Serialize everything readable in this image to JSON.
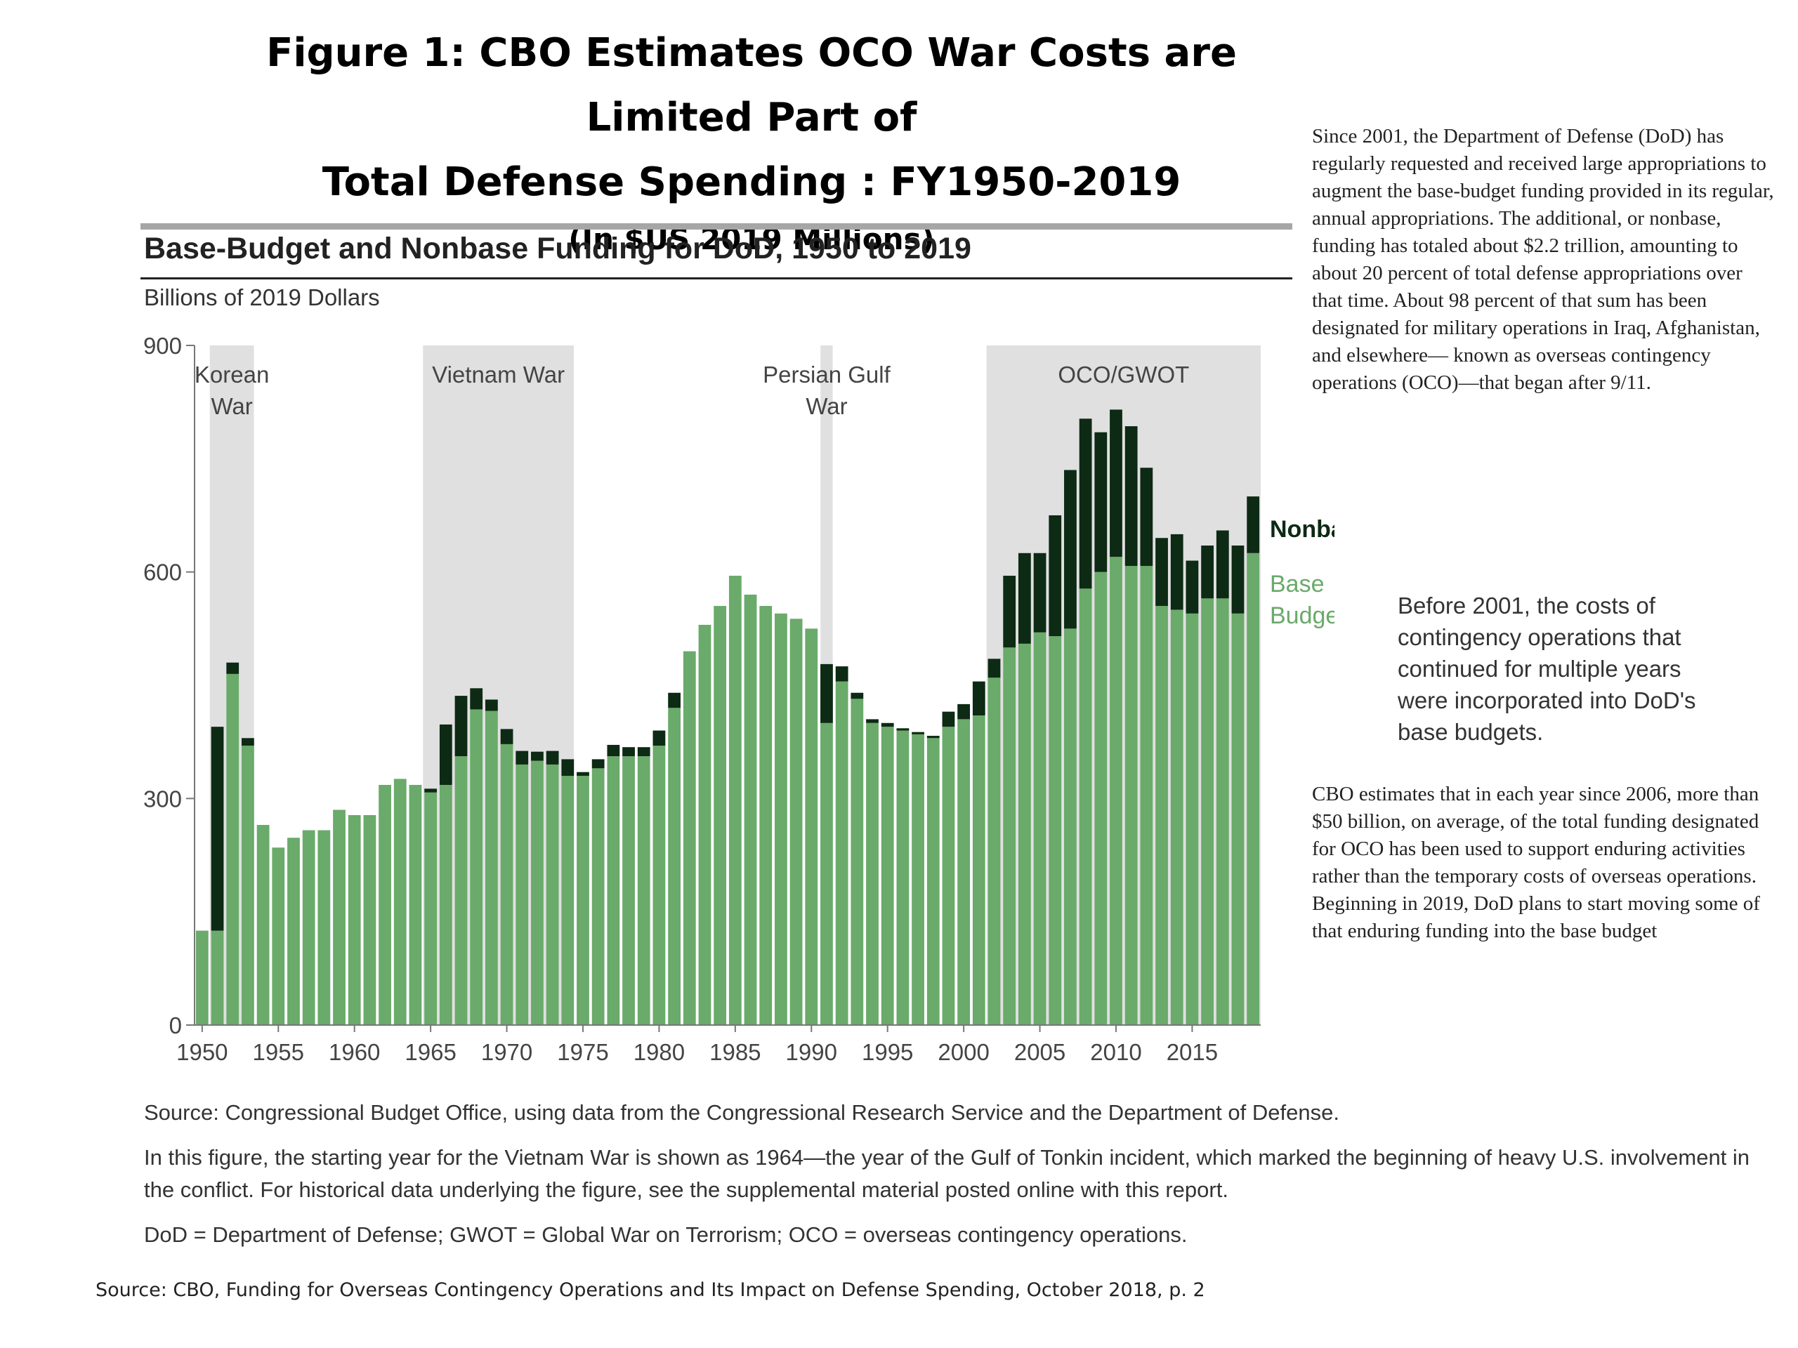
{
  "figure": {
    "title_line1": "Figure 1: CBO Estimates OCO War Costs are Limited Part of",
    "title_line2": "Total Defense Spending : FY1950-2019",
    "title_line3": "(In $US 2019 Millions)"
  },
  "chart_header": {
    "title": "Base-Budget and Nonbase Funding for DoD, 1950 to 2019",
    "units": "Billions of 2019 Dollars"
  },
  "notes": {
    "source": "Source: Congressional Budget Office, using data from the Congressional Research Service and the Department of Defense.",
    "note": "In this figure, the starting year for the Vietnam War is shown as 1964—the year of the Gulf of Tonkin incident, which marked the beginning of heavy U.S. involvement in the conflict. For historical data underlying the figure, see the supplemental material posted online with this report.",
    "abbrev": "DoD = Department of Defense; GWOT = Global War on Terrorism; OCO = overseas contingency operations."
  },
  "bottom_source": "Source: CBO, Funding for Overseas Contingency Operations and Its Impact on Defense Spending, October 2018, p. 2",
  "side_text": {
    "p1": "Since 2001, the Department of Defense (DoD) has regularly requested and received large appropriations to augment the base-budget funding provided in its regular, annual appropriations. The additional, or nonbase, funding has totaled about $2.2 trillion, amounting to about 20 percent of total defense appropriations over that time. About 98 percent of that sum has been designated for military operations in Iraq, Afghanistan, and elsewhere— known as overseas contingency operations (OCO)—that began after 9/11.",
    "p2": "Before 2001, the costs of contingency operations that continued for multiple years were incorporated into DoD's base budgets.",
    "p3": "CBO estimates that in each year since 2006, more than $50 billion, on average, of the total funding designated for OCO has been used to support enduring activities rather than the temporary costs of overseas operations. Beginning in 2019, DoD plans to start moving some of that enduring funding into the base budget"
  },
  "colors": {
    "base": "#6aaa6a",
    "nonbase": "#0d2a14",
    "shade": "#e0e0e0",
    "axis": "#777777",
    "text": "#444444"
  },
  "chart_data": {
    "type": "bar",
    "stacked": true,
    "title": "Base-Budget and Nonbase Funding for DoD, 1950 to 2019",
    "ylabel": "Billions of 2019 Dollars",
    "xlabel": "",
    "ylim": [
      0,
      900
    ],
    "yticks": [
      0,
      300,
      600,
      900
    ],
    "xticks": [
      1950,
      1955,
      1960,
      1965,
      1970,
      1975,
      1980,
      1985,
      1990,
      1995,
      2000,
      2005,
      2010,
      2015
    ],
    "grid": false,
    "x": [
      1950,
      1951,
      1952,
      1953,
      1954,
      1955,
      1956,
      1957,
      1958,
      1959,
      1960,
      1961,
      1962,
      1963,
      1964,
      1965,
      1966,
      1967,
      1968,
      1969,
      1970,
      1971,
      1972,
      1973,
      1974,
      1975,
      1976,
      1977,
      1978,
      1979,
      1980,
      1981,
      1982,
      1983,
      1984,
      1985,
      1986,
      1987,
      1988,
      1989,
      1990,
      1991,
      1992,
      1993,
      1994,
      1995,
      1996,
      1997,
      1998,
      1999,
      2000,
      2001,
      2002,
      2003,
      2004,
      2005,
      2006,
      2007,
      2008,
      2009,
      2010,
      2011,
      2012,
      2013,
      2014,
      2015,
      2016,
      2017,
      2018,
      2019
    ],
    "series": [
      {
        "name": "Base Budget",
        "values": [
          125,
          125,
          465,
          370,
          265,
          235,
          248,
          258,
          258,
          285,
          278,
          278,
          318,
          326,
          318,
          308,
          318,
          356,
          418,
          416,
          372,
          345,
          350,
          345,
          330,
          330,
          340,
          356,
          356,
          356,
          370,
          420,
          495,
          530,
          555,
          595,
          570,
          555,
          545,
          538,
          525,
          400,
          455,
          432,
          400,
          395,
          390,
          385,
          380,
          395,
          405,
          410,
          460,
          500,
          505,
          520,
          515,
          525,
          578,
          600,
          620,
          608,
          608,
          555,
          550,
          545,
          565,
          565,
          545,
          625
        ]
      },
      {
        "name": "Nonbase",
        "values": [
          0,
          270,
          15,
          10,
          0,
          0,
          0,
          0,
          0,
          0,
          0,
          0,
          0,
          0,
          0,
          5,
          80,
          80,
          28,
          15,
          20,
          18,
          12,
          18,
          22,
          5,
          12,
          15,
          12,
          12,
          20,
          20,
          0,
          0,
          0,
          0,
          0,
          0,
          0,
          0,
          0,
          78,
          20,
          8,
          5,
          5,
          3,
          3,
          3,
          20,
          20,
          45,
          25,
          95,
          120,
          105,
          160,
          210,
          225,
          185,
          195,
          185,
          130,
          90,
          100,
          70,
          70,
          90,
          90,
          75
        ]
      }
    ],
    "shaded_periods": [
      {
        "label_line1": "Korean",
        "label_line2": "War",
        "start": 1950.5,
        "end": 1953.4
      },
      {
        "label_line1": "Vietnam War",
        "label_line2": "",
        "start": 1964.5,
        "end": 1974.4
      },
      {
        "label_line1": "Persian Gulf",
        "label_line2": "War",
        "start": 1990.6,
        "end": 1991.4
      },
      {
        "label_line1": "OCO/GWOT",
        "label_line2": "",
        "start": 2001.5,
        "end": 2019.5
      }
    ],
    "legend": [
      {
        "label_line1": "Nonbase",
        "label_line2": ""
      },
      {
        "label_line1": "Base",
        "label_line2": "Budget"
      }
    ]
  }
}
